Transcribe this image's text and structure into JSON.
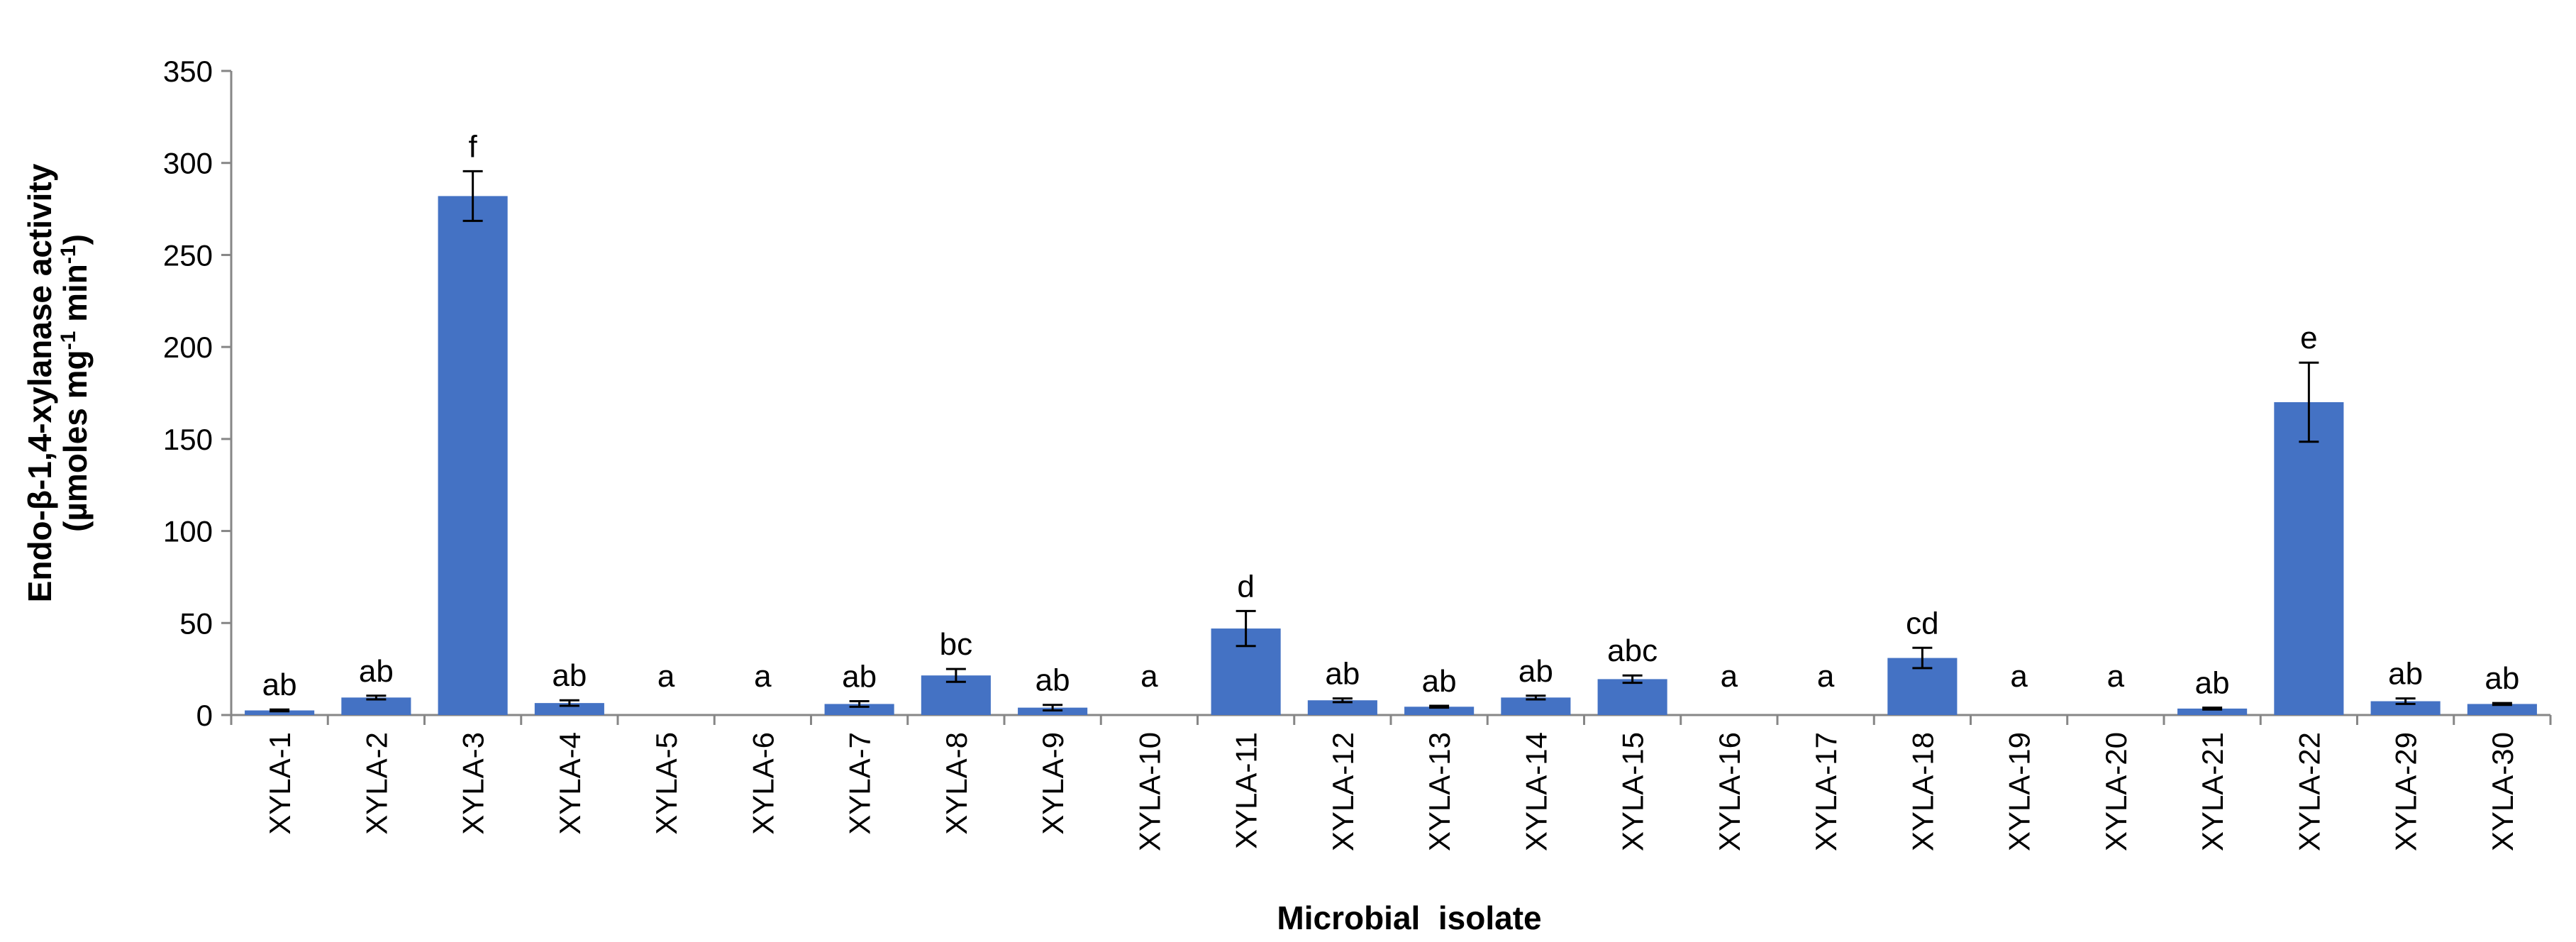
{
  "chart_data": {
    "type": "bar",
    "xlabel": "Microbial  isolate",
    "ylabel_line1": "Endo-β-1,4-xylanase activity",
    "ylabel_line2_prefix": "(µmoles mg",
    "ylabel_line2_sup1": "-1",
    "ylabel_line2_mid": " min",
    "ylabel_line2_sup2": "-1",
    "ylabel_line2_suffix": ")",
    "ylim": [
      0,
      350
    ],
    "yticks": [
      0,
      50,
      100,
      150,
      200,
      250,
      300,
      350
    ],
    "bar_color": "#4472C4",
    "grid": false,
    "categories": [
      "XYLA-1",
      "XYLA-2",
      "XYLA-3",
      "XYLA-4",
      "XYLA-5",
      "XYLA-6",
      "XYLA-7",
      "XYLA-8",
      "XYLA-9",
      "XYLA-10",
      "XYLA-11",
      "XYLA-12",
      "XYLA-13",
      "XYLA-14",
      "XYLA-15",
      "XYLA-16",
      "XYLA-17",
      "XYLA-18",
      "XYLA-19",
      "XYLA-20",
      "XYLA-21",
      "XYLA-22",
      "XYLA-29",
      "XYLA-30"
    ],
    "values": [
      2.5,
      9.5,
      282,
      6.5,
      0,
      0,
      6,
      21.5,
      4,
      0,
      47,
      8,
      4.5,
      9.5,
      19.5,
      0,
      0,
      31,
      0,
      0,
      3.5,
      170,
      7.5,
      6
    ],
    "errors": [
      0.5,
      1,
      13.5,
      1.5,
      0,
      0,
      1.5,
      3.5,
      1.5,
      0,
      9.5,
      1,
      0.5,
      1,
      2,
      0,
      0,
      5.5,
      0,
      0,
      0.5,
      21.5,
      1.5,
      0.5
    ],
    "significance_letters": [
      "ab",
      "ab",
      "f",
      "ab",
      "a",
      "a",
      "ab",
      "bc",
      "ab",
      "a",
      "d",
      "ab",
      "ab",
      "ab",
      "abc",
      "a",
      "a",
      "cd",
      "a",
      "a",
      "ab",
      "e",
      "ab",
      "ab"
    ]
  }
}
